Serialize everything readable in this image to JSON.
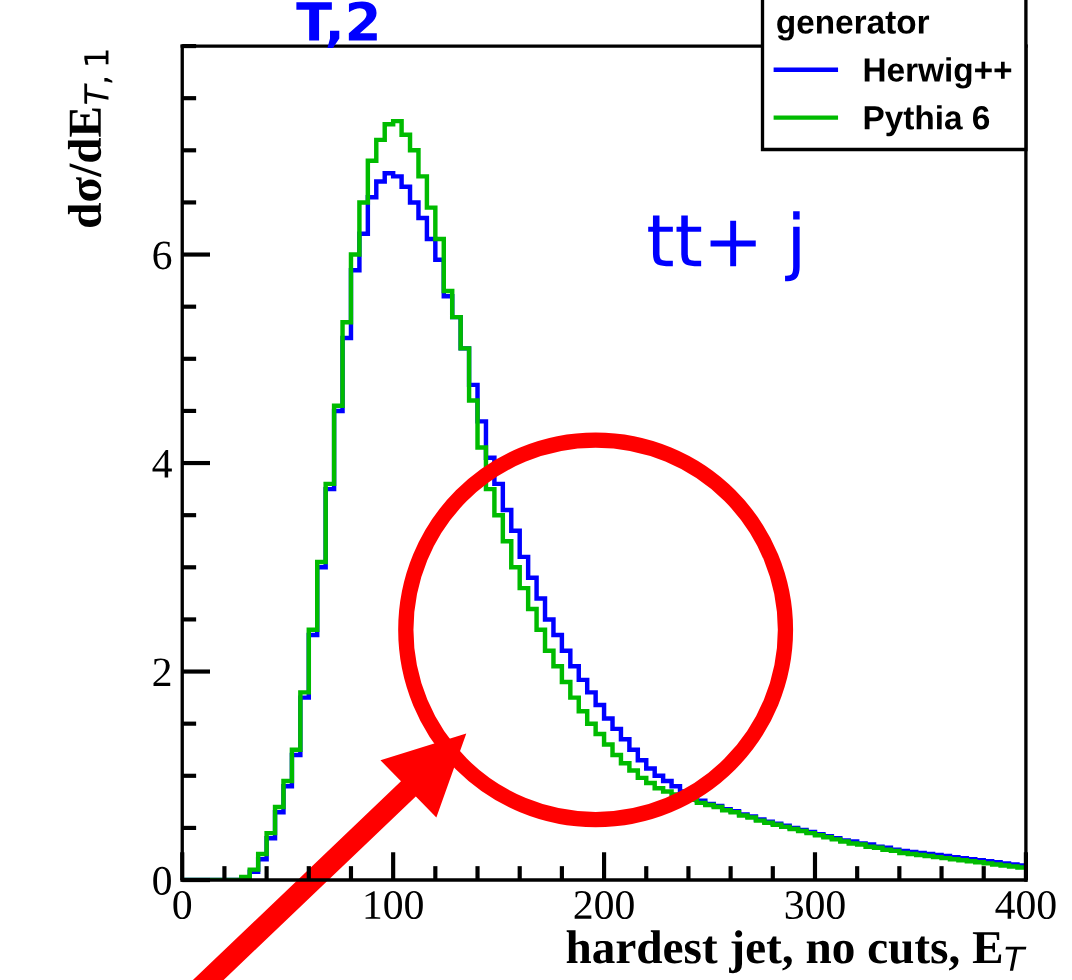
{
  "chart_data": {
    "type": "histogram",
    "xlabel": "hardest jet, no cuts, E$_{T}$",
    "ylabel": "dσ/dE$_{T,1}$",
    "legend_title": "generator",
    "annotations": [
      "T,2",
      "tt+ j"
    ],
    "bins": [
      0,
      4,
      8,
      12,
      16,
      20,
      24,
      28,
      32,
      36,
      40,
      44,
      48,
      52,
      56,
      60,
      64,
      68,
      72,
      76,
      80,
      84,
      88,
      92,
      96,
      100,
      104,
      108,
      112,
      116,
      120,
      124,
      128,
      132,
      136,
      140,
      144,
      148,
      152,
      156,
      160,
      164,
      168,
      172,
      176,
      180,
      184,
      188,
      192,
      196,
      200,
      204,
      208,
      212,
      216,
      220,
      224,
      228,
      232,
      236,
      240,
      244,
      248,
      252,
      256,
      260,
      264,
      268,
      272,
      276,
      280,
      284,
      288,
      292,
      296,
      300,
      304,
      308,
      312,
      316,
      320,
      324,
      328,
      332,
      336,
      340,
      344,
      348,
      352,
      356,
      360,
      364,
      368,
      372,
      376,
      380,
      384,
      388,
      392,
      396,
      400
    ],
    "series": [
      {
        "name": "Herwig++",
        "color": "#0000ff",
        "values": [
          0,
          0,
          0,
          0,
          0,
          0,
          0,
          0.02,
          0.08,
          0.2,
          0.4,
          0.65,
          0.9,
          1.2,
          1.75,
          2.35,
          3.0,
          3.75,
          4.5,
          5.2,
          5.85,
          6.2,
          6.55,
          6.7,
          6.78,
          6.75,
          6.65,
          6.5,
          6.35,
          6.15,
          5.95,
          5.6,
          5.4,
          5.1,
          4.75,
          4.4,
          4.05,
          3.8,
          3.55,
          3.35,
          3.1,
          2.9,
          2.7,
          2.5,
          2.35,
          2.2,
          2.05,
          1.92,
          1.8,
          1.68,
          1.55,
          1.45,
          1.35,
          1.25,
          1.15,
          1.07,
          1.0,
          0.95,
          0.9,
          0.85,
          0.8,
          0.76,
          0.73,
          0.71,
          0.68,
          0.66,
          0.63,
          0.61,
          0.58,
          0.56,
          0.54,
          0.52,
          0.5,
          0.48,
          0.46,
          0.44,
          0.42,
          0.4,
          0.38,
          0.37,
          0.35,
          0.34,
          0.32,
          0.31,
          0.29,
          0.28,
          0.27,
          0.26,
          0.25,
          0.24,
          0.23,
          0.22,
          0.21,
          0.2,
          0.19,
          0.18,
          0.17,
          0.16,
          0.15,
          0.14
        ]
      },
      {
        "name": "Pythia 6",
        "color": "#00bb00",
        "values": [
          0,
          0,
          0,
          0,
          0,
          0,
          0,
          0.03,
          0.1,
          0.25,
          0.45,
          0.7,
          0.95,
          1.25,
          1.8,
          2.4,
          3.05,
          3.8,
          4.55,
          5.35,
          6.0,
          6.5,
          6.9,
          7.1,
          7.25,
          7.28,
          7.15,
          7.0,
          6.75,
          6.45,
          6.15,
          5.65,
          5.4,
          5.1,
          4.6,
          4.15,
          3.75,
          3.5,
          3.25,
          3.0,
          2.8,
          2.6,
          2.4,
          2.2,
          2.05,
          1.9,
          1.75,
          1.62,
          1.5,
          1.4,
          1.3,
          1.2,
          1.12,
          1.05,
          0.98,
          0.93,
          0.88,
          0.85,
          0.82,
          0.79,
          0.77,
          0.74,
          0.72,
          0.7,
          0.67,
          0.65,
          0.62,
          0.6,
          0.57,
          0.55,
          0.53,
          0.51,
          0.49,
          0.47,
          0.45,
          0.43,
          0.41,
          0.39,
          0.37,
          0.35,
          0.34,
          0.32,
          0.31,
          0.29,
          0.28,
          0.26,
          0.25,
          0.24,
          0.23,
          0.22,
          0.21,
          0.2,
          0.19,
          0.18,
          0.17,
          0.16,
          0.15,
          0.14,
          0.13,
          0.12
        ]
      }
    ],
    "xlim": [
      0,
      400
    ],
    "xticks": [
      0,
      100,
      200,
      300,
      400
    ],
    "ylim": [
      0,
      8
    ],
    "yticks": [
      0,
      2,
      4,
      6
    ],
    "grid": false,
    "legend": "top right"
  }
}
